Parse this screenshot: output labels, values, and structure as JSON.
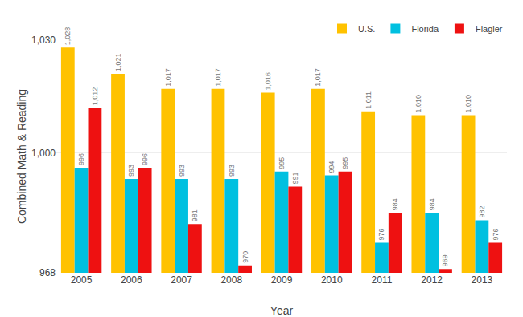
{
  "chart_data": {
    "type": "bar",
    "xlabel": "Year",
    "ylabel": "Combined Math & Reading",
    "categories": [
      "2005",
      "2006",
      "2007",
      "2008",
      "2009",
      "2010",
      "2011",
      "2012",
      "2013"
    ],
    "series": [
      {
        "name": "U.S.",
        "color": "#FFC200",
        "values": [
          1028,
          1021,
          1017,
          1017,
          1016,
          1017,
          1011,
          1010,
          1010
        ],
        "value_labels": [
          "1,028",
          "1,021",
          "1,017",
          "1,017",
          "1,016",
          "1,017",
          "1,011",
          "1,010",
          "1,010"
        ]
      },
      {
        "name": "Florida",
        "color": "#00C0E0",
        "values": [
          996,
          993,
          993,
          993,
          995,
          994,
          976,
          984,
          982
        ]
      },
      {
        "name": "Flagler",
        "color": "#EE1111",
        "values": [
          1012,
          996,
          981,
          970,
          991,
          995,
          984,
          969,
          976
        ],
        "value_labels": [
          "1,012",
          "996",
          "981",
          "970",
          "991",
          "995",
          "984",
          "969",
          "976"
        ]
      }
    ],
    "ylim": [
      968,
      1030
    ],
    "yticks": [
      968,
      {
        "value": 1000,
        "label": "1,000"
      },
      {
        "value": 1030,
        "label": "1,030"
      }
    ],
    "grid": true,
    "legend": "upper right",
    "data_labels": true
  }
}
